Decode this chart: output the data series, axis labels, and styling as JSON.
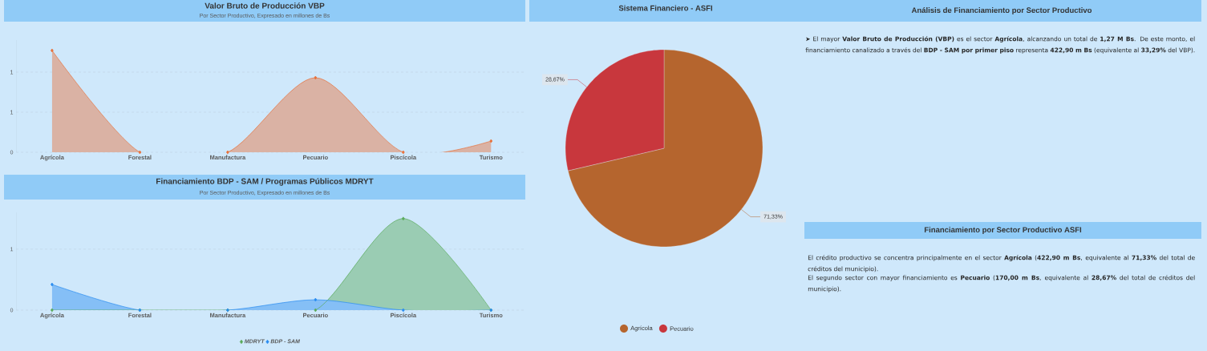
{
  "chart_data": [
    {
      "type": "area",
      "title": "Valor Bruto de Producción VBP",
      "subtitle": "Por Sector Productivo, Expresado en millones de Bs",
      "categories": [
        "Agrícola",
        "Forestal",
        "Manufactura",
        "Pecuario",
        "Piscícola",
        "Turismo"
      ],
      "series": [
        {
          "color": "#e8703a",
          "values": [
            1.27,
            0,
            0,
            0.93,
            0,
            0.14
          ]
        }
      ],
      "ylim": [
        0,
        1.4
      ],
      "yticks": [
        0,
        {
          "value": 0.5,
          "label": "1"
        },
        {
          "value": 1,
          "label": "1"
        }
      ],
      "grid": "y",
      "marker": "diamond",
      "line_style": "solid"
    },
    {
      "type": "area",
      "title": "Financiamiento BDP - SAM / Programas Públicos MDRYT",
      "subtitle": "Por Sector Productivo, Expresado en millones de Bs",
      "categories": [
        "Agrícola",
        "Forestal",
        "Manufactura",
        "Pecuario",
        "Piscícola",
        "Turismo"
      ],
      "series": [
        {
          "name": "MDRYT",
          "color": "#5aaa5a",
          "values": [
            0,
            0,
            0,
            0,
            1.5,
            0
          ]
        },
        {
          "name": "BDP - SAM",
          "color": "#2a8cf0",
          "values": [
            0.42,
            0,
            0,
            0.17,
            0,
            0
          ]
        }
      ],
      "ylim": [
        0,
        1.6
      ],
      "yticks": [
        0,
        1
      ],
      "grid": "y",
      "marker": "diamond",
      "line_style": "solid",
      "legend": "bottom"
    },
    {
      "type": "pie",
      "title": "Sistema Financiero - ASFI",
      "categories": [
        "Agrícola",
        "Pecuario"
      ],
      "values": [
        71.33,
        28.67
      ],
      "colors": [
        "#b5652e",
        "#c8373d"
      ],
      "value_labels": [
        "71,33%",
        "28,67%"
      ],
      "legend": "bottom"
    },
    {
      "type": "other",
      "title": "Análisis de Financiamiento por Sector Productivo",
      "annotations": [
        "➤ El mayor **Valor Bruto de Producción (VBP)** es el sector **Agrícola**, alcanzando un total de **1,27 M Bs**. De este monto, el financiamiento canalizado a través del **BDP - SAM por primer piso** representa **422,90 m Bs** (equivalente al **33,29%** del VBP)."
      ]
    },
    {
      "type": "other",
      "title": "Financiamiento por Sector Productivo ASFI",
      "annotations": [
        "El crédito productivo se concentra principalmente en el sector **Agrícola** (**422,90 m Bs**, equivalente al **71,33%** del total de créditos del municipio).",
        "El segundo sector con mayor financiamiento es **Pecuario** (**170,00 m Bs**, equivalente al **28,67%** del total de créditos del municipio)."
      ]
    }
  ]
}
